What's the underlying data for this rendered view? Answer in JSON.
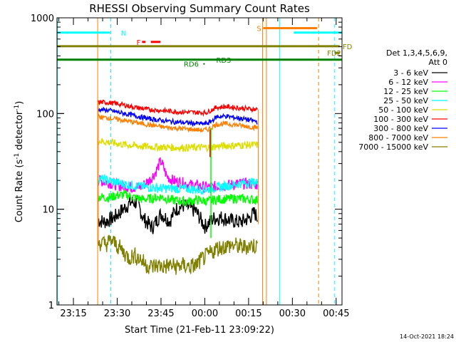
{
  "chart_data": {
    "type": "line",
    "title": "RHESSI Observing Summary Count Rates",
    "xlabel": "Start Time (21-Feb-11 23:09:22)",
    "ylabel_parts": [
      "Count Rate (s",
      "-1",
      " detector",
      "-1",
      ")"
    ],
    "y_scale": "log",
    "ylim": [
      1,
      1000
    ],
    "xlim_minutes_after_23_00": [
      9.37,
      107
    ],
    "x_ticks": [
      {
        "m": 15,
        "label": "23:15"
      },
      {
        "m": 30,
        "label": "23:30"
      },
      {
        "m": 45,
        "label": "23:45"
      },
      {
        "m": 60,
        "label": "00:00"
      },
      {
        "m": 75,
        "label": "00:15"
      },
      {
        "m": 90,
        "label": "00:30"
      },
      {
        "m": 105,
        "label": "00:45"
      }
    ],
    "y_ticks": [
      {
        "v": 1,
        "label": "1"
      },
      {
        "v": 10,
        "label": "10"
      },
      {
        "v": 100,
        "label": "100"
      },
      {
        "v": 1000,
        "label": "1000"
      }
    ],
    "legend": {
      "header": [
        "Det 1,3,4,5,6,9,",
        "Att 0"
      ],
      "position": "right"
    },
    "series": [
      {
        "name": "3 - 6 keV",
        "color": "#000000",
        "points": [
          [
            23.5,
            7.6
          ],
          [
            26,
            7.4
          ],
          [
            29,
            8.2
          ],
          [
            32,
            10
          ],
          [
            35,
            12
          ],
          [
            37,
            11.5
          ],
          [
            39,
            8
          ],
          [
            42,
            6.4
          ],
          [
            45,
            9
          ],
          [
            48,
            7.5
          ],
          [
            50,
            10
          ],
          [
            53,
            11
          ],
          [
            57,
            9.5
          ],
          [
            60,
            6.6
          ],
          [
            63,
            8
          ],
          [
            66,
            8.2
          ],
          [
            69,
            7.6
          ],
          [
            72,
            7.3
          ],
          [
            75,
            8
          ],
          [
            77,
            9.2
          ],
          [
            78.2,
            8
          ]
        ]
      },
      {
        "name": "6 - 12 keV",
        "color": "#ff00ff",
        "points": [
          [
            23.5,
            20
          ],
          [
            27,
            19
          ],
          [
            31,
            17.5
          ],
          [
            35,
            17
          ],
          [
            38,
            17
          ],
          [
            41,
            20
          ],
          [
            43,
            24
          ],
          [
            45,
            32
          ],
          [
            47,
            22
          ],
          [
            49,
            20
          ],
          [
            52,
            19
          ],
          [
            55,
            18
          ],
          [
            58,
            17.5
          ],
          [
            60,
            17
          ],
          [
            62,
            17
          ],
          [
            65,
            17.5
          ],
          [
            69,
            18
          ],
          [
            72,
            18.5
          ],
          [
            75,
            18.5
          ],
          [
            78.2,
            18
          ]
        ]
      },
      {
        "name": "12 - 25 keV",
        "color": "#00ff00",
        "points": [
          [
            23.5,
            13.5
          ],
          [
            27,
            13.2
          ],
          [
            30,
            14
          ],
          [
            33,
            14.2
          ],
          [
            36,
            13.2
          ],
          [
            39,
            12.7
          ],
          [
            42,
            13
          ],
          [
            45,
            13.5
          ],
          [
            48,
            12.5
          ],
          [
            51,
            12.3
          ],
          [
            54,
            12
          ],
          [
            57,
            12.5
          ],
          [
            60,
            12.2
          ],
          [
            62,
            12.2
          ],
          [
            63,
            12.5
          ],
          [
            65,
            12.7
          ],
          [
            68,
            12.8
          ],
          [
            71,
            13
          ],
          [
            74,
            12.8
          ],
          [
            78.2,
            12.5
          ]
        ]
      },
      {
        "name": "25 - 50 keV",
        "color": "#00ffff",
        "points": [
          [
            23.5,
            21
          ],
          [
            27,
            20
          ],
          [
            30,
            19
          ],
          [
            34,
            18
          ],
          [
            38,
            17.3
          ],
          [
            42,
            16.8
          ],
          [
            46,
            16.5
          ],
          [
            50,
            16.5
          ],
          [
            54,
            16.3
          ],
          [
            58,
            16
          ],
          [
            61,
            16.2
          ],
          [
            64,
            16.8
          ],
          [
            67,
            17.5
          ],
          [
            70,
            18
          ],
          [
            73,
            18.8
          ],
          [
            76,
            19
          ],
          [
            78.2,
            19
          ]
        ]
      },
      {
        "name": "50 - 100 keV",
        "color": "#dddd00",
        "points": [
          [
            23.5,
            52
          ],
          [
            27,
            50
          ],
          [
            31,
            48
          ],
          [
            36,
            46
          ],
          [
            41,
            45
          ],
          [
            46,
            44.5
          ],
          [
            51,
            44
          ],
          [
            56,
            44
          ],
          [
            61,
            44.5
          ],
          [
            62,
            44
          ],
          [
            63,
            45
          ],
          [
            67,
            46
          ],
          [
            71,
            46.5
          ],
          [
            75,
            47
          ],
          [
            78.2,
            47
          ]
        ]
      },
      {
        "name": "100 - 300 keV",
        "color": "#ff0000",
        "points": [
          [
            23.5,
            132
          ],
          [
            27,
            130
          ],
          [
            31,
            125
          ],
          [
            36,
            116
          ],
          [
            41,
            110
          ],
          [
            46,
            107
          ],
          [
            51,
            104
          ],
          [
            56,
            103
          ],
          [
            59,
            102
          ],
          [
            61,
            103
          ],
          [
            62,
            108
          ],
          [
            64,
            116
          ],
          [
            67,
            118
          ],
          [
            71,
            115
          ],
          [
            75,
            112
          ],
          [
            78.2,
            110
          ]
        ]
      },
      {
        "name": "300 - 800 keV",
        "color": "#0000ff",
        "points": [
          [
            23.5,
            110
          ],
          [
            27,
            108
          ],
          [
            31,
            102
          ],
          [
            36,
            95
          ],
          [
            41,
            88
          ],
          [
            46,
            84
          ],
          [
            51,
            81
          ],
          [
            56,
            79
          ],
          [
            59,
            78
          ],
          [
            61,
            79
          ],
          [
            62,
            82
          ],
          [
            64,
            92
          ],
          [
            67,
            94
          ],
          [
            71,
            90
          ],
          [
            75,
            86
          ],
          [
            78.2,
            82
          ]
        ]
      },
      {
        "name": "800 - 7000 keV",
        "color": "#ff7f00",
        "points": [
          [
            23.5,
            92
          ],
          [
            27,
            90
          ],
          [
            31,
            86
          ],
          [
            36,
            81
          ],
          [
            41,
            76
          ],
          [
            46,
            72
          ],
          [
            51,
            70
          ],
          [
            56,
            68
          ],
          [
            59,
            67
          ],
          [
            61,
            68
          ],
          [
            62,
            71
          ],
          [
            64,
            77
          ],
          [
            67,
            78
          ],
          [
            71,
            76
          ],
          [
            75,
            73
          ],
          [
            78.2,
            71
          ]
        ]
      },
      {
        "name": "7000 - 15000 keV",
        "color": "#808000",
        "points": [
          [
            23.5,
            4.5
          ],
          [
            26,
            4.3
          ],
          [
            28,
            4.7
          ],
          [
            30,
            4.2
          ],
          [
            32,
            3.6
          ],
          [
            34,
            3.1
          ],
          [
            36,
            3.3
          ],
          [
            38,
            3.0
          ],
          [
            40,
            2.6
          ],
          [
            42,
            2.5
          ],
          [
            44,
            2.6
          ],
          [
            46,
            2.5
          ],
          [
            48,
            2.6
          ],
          [
            50,
            2.5
          ],
          [
            52,
            2.6
          ],
          [
            55,
            2.5
          ],
          [
            57,
            2.6
          ],
          [
            59,
            3.0
          ],
          [
            61,
            3.3
          ],
          [
            64,
            3.9
          ],
          [
            67,
            4.1
          ],
          [
            70,
            4.2
          ],
          [
            73,
            4.0
          ],
          [
            76,
            4.2
          ],
          [
            78.2,
            4.1
          ]
        ]
      }
    ],
    "flag_lines": [
      {
        "label": "N",
        "color": "#00ffff",
        "y": 700,
        "x_segments": [
          [
            9.37,
            27.5
          ],
          [
            90.5,
            107
          ]
        ],
        "label_at": 31.3
      },
      {
        "label": "S",
        "color": "#ff7f00",
        "y": 780,
        "x_segments": [
          [
            80,
            98.5
          ]
        ],
        "label_at": 77.8
      },
      {
        "label": "F",
        "color": "#ff0000",
        "y": 560,
        "x_segments": [
          [
            38.5,
            39.7
          ],
          [
            41.5,
            44.8
          ]
        ],
        "label_at": 36.6
      },
      {
        "label": "FD",
        "color": "#808000",
        "y": 505,
        "x_segments": [
          [
            9.37,
            106.2
          ]
        ],
        "label_at": 107.2
      },
      {
        "label": "FD2",
        "color": "#808000",
        "y": 430,
        "x_segments": [
          [
            104.5,
            106.2
          ]
        ],
        "label_at": 101.9
      },
      {
        "label": "RD6",
        "color": "#008000",
        "y": 330,
        "x_segments": [
          [
            59.5,
            60
          ]
        ],
        "label_at": 52.8
      },
      {
        "label": "RD3",
        "color": "#008000",
        "y": 365,
        "x_segments": [
          [
            9.37,
            107
          ]
        ],
        "label_at": 63.9
      }
    ],
    "vertical_markers": [
      {
        "m": 9.5,
        "color": "#00ffff",
        "style": "solid"
      },
      {
        "m": 27.8,
        "color": "#00ffff",
        "style": "dashed"
      },
      {
        "m": 23.3,
        "color": "#ff7f00",
        "style": "solid"
      },
      {
        "m": 79.8,
        "color": "#ff7f00",
        "style": "solid"
      },
      {
        "m": 81.1,
        "color": "#ff7f00",
        "style": "solid"
      },
      {
        "m": 85.6,
        "color": "#00ffff",
        "style": "solid"
      },
      {
        "m": 99,
        "color": "#ff7f00",
        "style": "dashed"
      },
      {
        "m": 104.5,
        "color": "#00ffff",
        "style": "dashed"
      }
    ]
  },
  "timestamp": "14-Oct-2021 18:24"
}
